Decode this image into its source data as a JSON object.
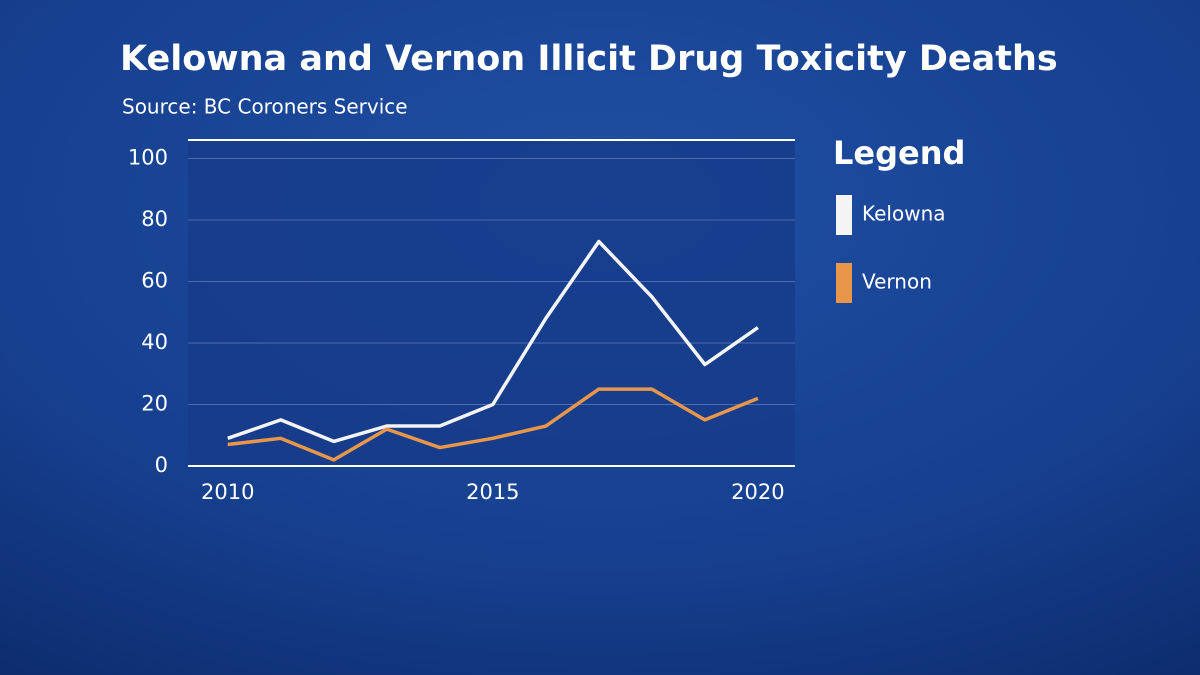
{
  "chart_data": {
    "type": "line",
    "title": "Kelowna and Vernon Illicit Drug Toxicity Deaths",
    "subtitle": "Source: BC Coroners Service",
    "legend_title": "Legend",
    "x": [
      2010,
      2011,
      2012,
      2013,
      2014,
      2015,
      2016,
      2017,
      2018,
      2019,
      2020
    ],
    "series": [
      {
        "name": "Kelowna",
        "color": "#f4f4f4",
        "values": [
          9,
          15,
          8,
          13,
          13,
          20,
          48,
          73,
          55,
          33,
          45
        ]
      },
      {
        "name": "Vernon",
        "color": "#e8964a",
        "values": [
          7,
          9,
          2,
          12,
          6,
          9,
          13,
          25,
          25,
          15,
          22
        ]
      }
    ],
    "xlim": [
      2009.25,
      2020.7
    ],
    "xticks": [
      2010,
      2015,
      2020
    ],
    "ylim": [
      0,
      106
    ],
    "yticks": [
      0,
      20,
      40,
      60,
      80,
      100
    ],
    "grid": true,
    "legend": "right"
  }
}
